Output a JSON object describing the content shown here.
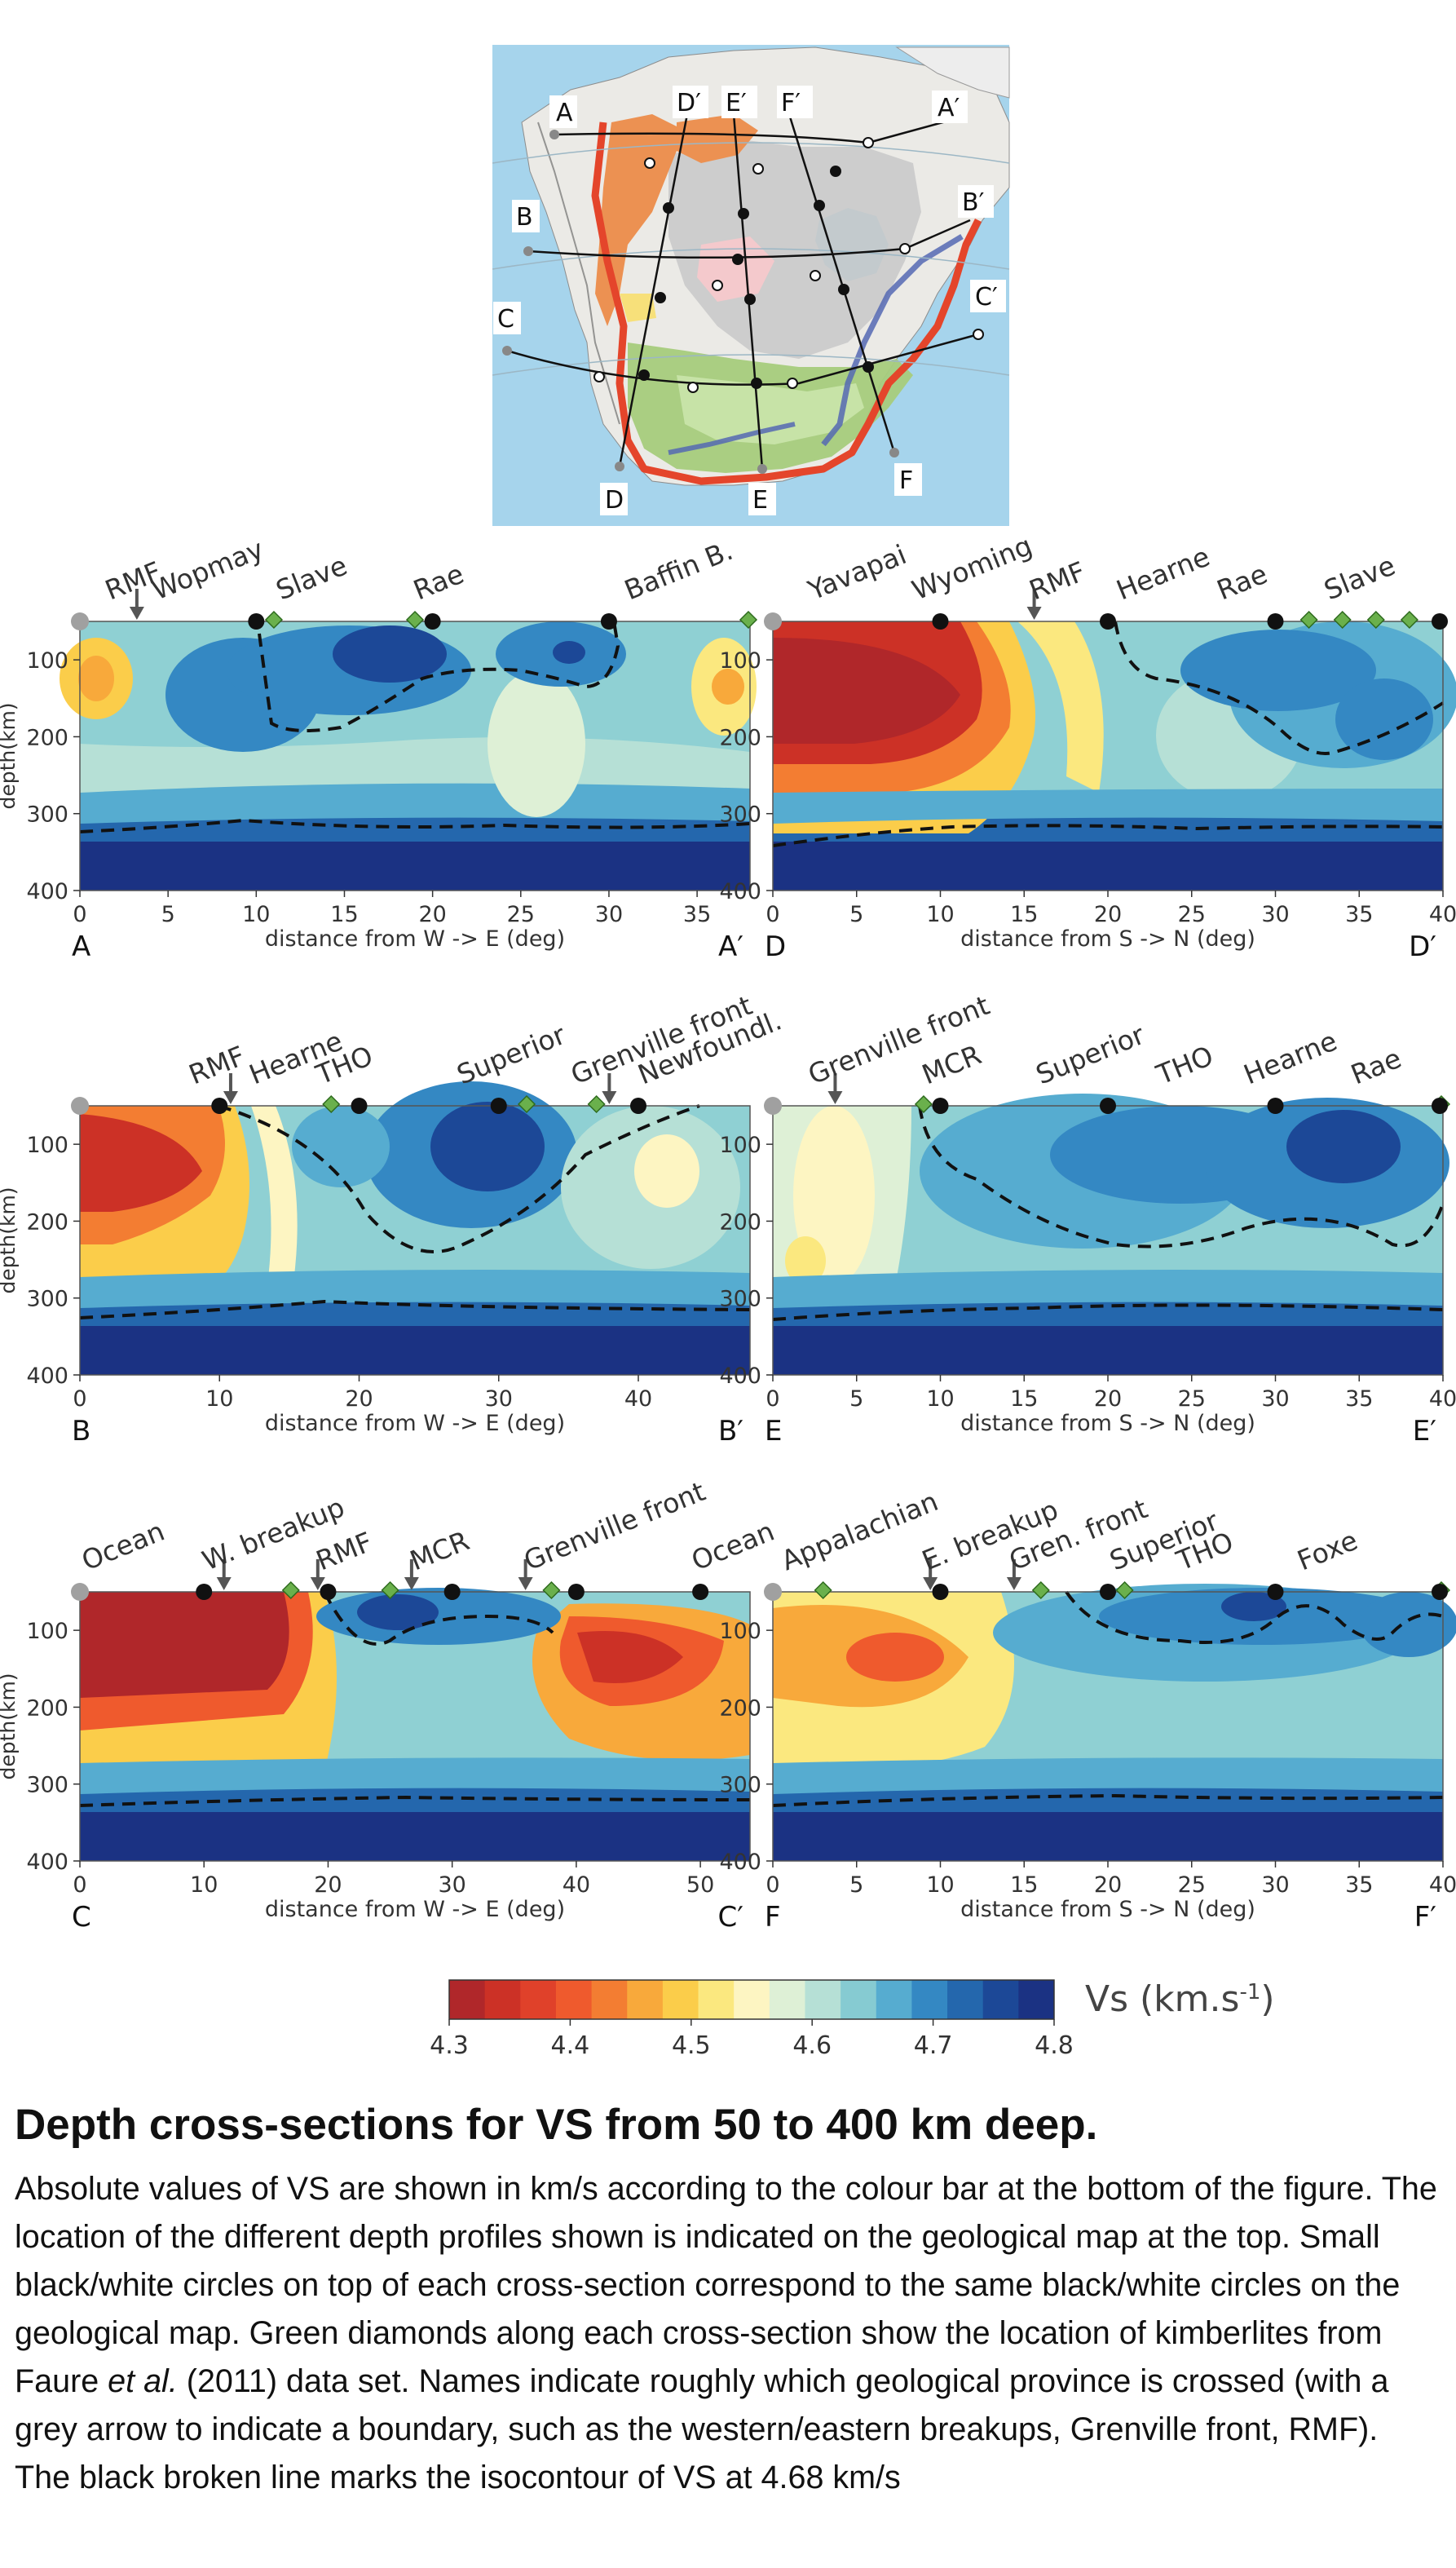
{
  "map": {
    "labels": [
      "A",
      "A′",
      "B",
      "B′",
      "C",
      "C′",
      "D",
      "D′",
      "E",
      "E′",
      "F",
      "F′"
    ]
  },
  "panels": [
    {
      "id": "A",
      "start_label": "A",
      "end_label": "A′",
      "xlabel": "distance from W -> E (deg)",
      "xticks": [
        "0",
        "5",
        "10",
        "15",
        "20",
        "25",
        "30",
        "35"
      ],
      "show_ylabel": true,
      "provinces": [
        "RMF",
        "Wopmay",
        "Slave",
        "Rae",
        "Baffin B."
      ],
      "arrows": [
        "RMF"
      ],
      "black_circles_deg": [
        10,
        20,
        30
      ],
      "kimberlites_deg": [
        11,
        19,
        38
      ]
    },
    {
      "id": "D",
      "start_label": "D",
      "end_label": "D′",
      "xlabel": "distance from S -> N (deg)",
      "xticks": [
        "0",
        "5",
        "10",
        "15",
        "20",
        "25",
        "30",
        "35",
        "40"
      ],
      "show_ylabel": false,
      "provinces": [
        "Yavapai",
        "Wyoming",
        "RMF",
        "Hearne",
        "Rae",
        "Slave"
      ],
      "arrows": [
        "RMF"
      ],
      "black_circles_deg": [
        10,
        20,
        30,
        40
      ],
      "kimberlites_deg": [
        32,
        34,
        36,
        38
      ]
    },
    {
      "id": "B",
      "start_label": "B",
      "end_label": "B′",
      "xlabel": "distance from W -> E (deg)",
      "xticks": [
        "0",
        "10",
        "20",
        "30",
        "40"
      ],
      "show_ylabel": true,
      "provinces": [
        "RMF",
        "Hearne",
        "THO",
        "Superior",
        "Grenville front",
        "Newfoundl."
      ],
      "arrows": [
        "RMF",
        "Grenville front"
      ],
      "black_circles_deg": [
        10,
        20,
        30,
        40
      ],
      "kimberlites_deg": [
        18,
        32,
        37
      ]
    },
    {
      "id": "E",
      "start_label": "E",
      "end_label": "E′",
      "xlabel": "distance from S -> N (deg)",
      "xticks": [
        "0",
        "5",
        "10",
        "15",
        "20",
        "25",
        "30",
        "35",
        "40"
      ],
      "show_ylabel": false,
      "provinces": [
        "Grenville front",
        "MCR",
        "Superior",
        "THO",
        "Hearne",
        "Rae"
      ],
      "arrows": [
        "Grenville front"
      ],
      "black_circles_deg": [
        10,
        20,
        30,
        40
      ],
      "kimberlites_deg": [
        9,
        40
      ]
    },
    {
      "id": "C",
      "start_label": "C",
      "end_label": "C′",
      "xlabel": "distance from W -> E (deg)",
      "xticks": [
        "0",
        "10",
        "20",
        "30",
        "40",
        "50"
      ],
      "show_ylabel": true,
      "provinces": [
        "Ocean",
        "W. breakup",
        "RMF",
        "MCR",
        "Grenville front",
        "Ocean"
      ],
      "arrows": [
        "W. breakup",
        "RMF",
        "MCR",
        "Grenville front"
      ],
      "black_circles_deg": [
        10,
        20,
        30,
        40,
        50
      ],
      "kimberlites_deg": [
        17,
        25,
        38
      ]
    },
    {
      "id": "F",
      "start_label": "F",
      "end_label": "F′",
      "xlabel": "distance from S -> N (deg)",
      "xticks": [
        "0",
        "5",
        "10",
        "15",
        "20",
        "25",
        "30",
        "35",
        "40"
      ],
      "show_ylabel": false,
      "provinces": [
        "Appalachian",
        "E. breakup",
        "Gren. front",
        "Superior",
        "THO",
        "Foxe"
      ],
      "arrows": [
        "E. breakup",
        "Gren. front"
      ],
      "black_circles_deg": [
        10,
        20,
        30,
        40
      ],
      "kimberlites_deg": [
        3,
        16,
        21,
        40
      ]
    }
  ],
  "y_axis": {
    "label": "depth(km)",
    "ticks": [
      "100",
      "200",
      "300",
      "400"
    ],
    "range_km": [
      50,
      400
    ]
  },
  "colorbar": {
    "label": "Vs (km.s",
    "label_sup": "-1",
    "label_close": ")",
    "ticks": [
      "4.3",
      "4.4",
      "4.5",
      "4.6",
      "4.7",
      "4.8"
    ],
    "range": [
      4.3,
      4.8
    ],
    "colors": [
      "#b0272a",
      "#cc3126",
      "#e0412a",
      "#ef5a2d",
      "#f37d32",
      "#f8a93b",
      "#fbcd4a",
      "#fbe87f",
      "#fdf5c2",
      "#def0d6",
      "#b6e0d6",
      "#86cbd2",
      "#56acd0",
      "#3488c3",
      "#2467ad",
      "#1c4897",
      "#1b3283"
    ]
  },
  "caption": {
    "title": "Depth cross-sections for VS from 50 to 400 km deep.",
    "part1": "Absolute values of VS are shown in km/s according to the colour bar at the bottom of the figure. The location of the different depth profiles shown is indicated on the geological map at the top. Small black/white circles on top of each cross-section correspond to the same black/white circles on the geological map. Green diamonds along each cross-section show the location of kimberlites from Faure ",
    "etal": "et al.",
    "part2": " (2011) data set. Names indicate roughly which geological province is crossed (with a grey arrow to indicate a boundary, such as the western/eastern breakups, Grenville front, RMF). The black broken line marks the isocontour of VS at 4.68 km/s"
  }
}
